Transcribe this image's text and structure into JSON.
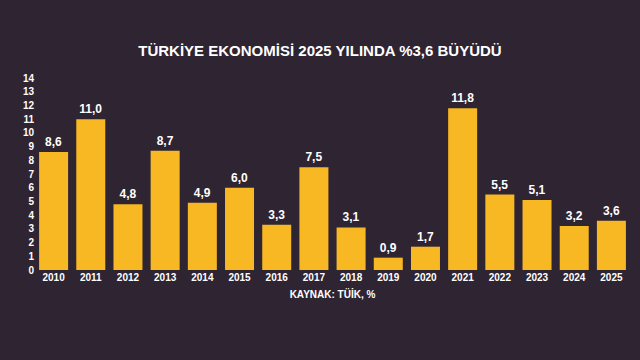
{
  "chart_data": {
    "type": "bar",
    "title": "TÜRKİYE EKONOMİSİ 2025 YILINDA %3,6 BÜYÜDÜ",
    "xlabel": "KAYNAK: TÜİK, %",
    "categories": [
      "2010",
      "2011",
      "2012",
      "2013",
      "2014",
      "2015",
      "2016",
      "2017",
      "2018",
      "2019",
      "2020",
      "2021",
      "2022",
      "2023",
      "2024",
      "2025"
    ],
    "values": [
      8.6,
      11.0,
      4.8,
      8.7,
      4.9,
      6.0,
      3.3,
      7.5,
      3.1,
      0.9,
      1.7,
      11.8,
      5.5,
      5.1,
      3.2,
      3.6
    ],
    "value_labels": [
      "8,6",
      "11,0",
      "4,8",
      "8,7",
      "4,9",
      "6,0",
      "3,3",
      "7,5",
      "3,1",
      "0,9",
      "1,7",
      "11,8",
      "5,5",
      "5,1",
      "3,2",
      "3,6"
    ],
    "color": "#f7b824",
    "ylim": [
      0,
      14
    ],
    "yticks": [
      0,
      1,
      2,
      3,
      4,
      5,
      6,
      7,
      8,
      9,
      10,
      11,
      12,
      13,
      14
    ],
    "data_labels": true,
    "grid": false
  }
}
